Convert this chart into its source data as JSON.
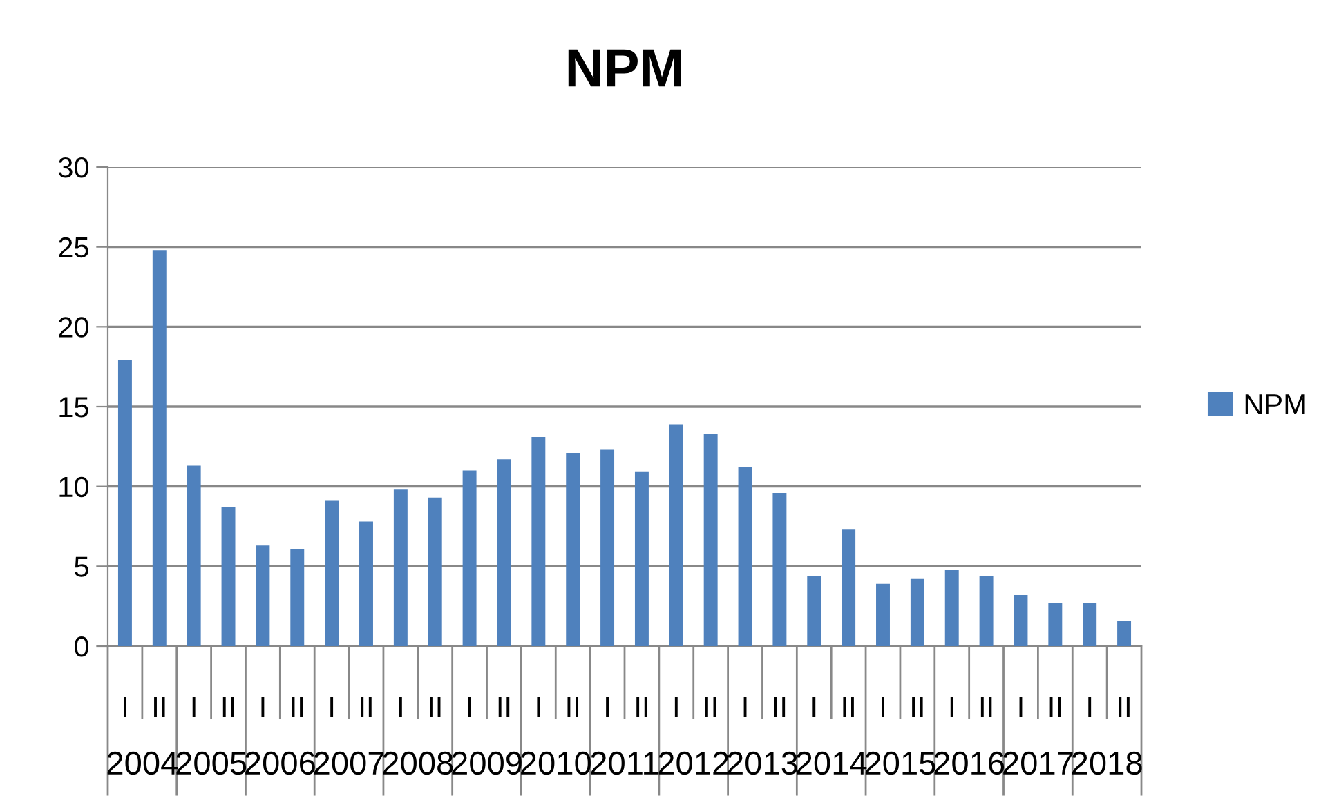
{
  "chart_data": {
    "type": "bar",
    "title": "NPM",
    "categories": [
      "I",
      "II",
      "I",
      "II",
      "I",
      "II",
      "I",
      "II",
      "I",
      "II",
      "I",
      "II",
      "I",
      "II",
      "I",
      "II",
      "I",
      "II",
      "I",
      "II",
      "I",
      "II",
      "I",
      "II",
      "I",
      "II",
      "I",
      "II",
      "I",
      "II"
    ],
    "annotations": [
      "2004",
      "2005",
      "2006",
      "2007",
      "2008",
      "2009",
      "2010",
      "2011",
      "2012",
      "2013",
      "2014",
      "2015",
      "2016",
      "2017",
      "2018"
    ],
    "series": [
      {
        "name": "NPM",
        "color": "#4f81bd",
        "values": [
          17.9,
          24.8,
          11.3,
          8.7,
          6.3,
          6.1,
          9.1,
          7.8,
          9.8,
          9.3,
          11.0,
          11.7,
          13.1,
          12.1,
          12.3,
          10.9,
          13.9,
          13.3,
          11.2,
          9.6,
          4.4,
          7.3,
          3.9,
          4.2,
          4.8,
          4.4,
          3.2,
          2.7,
          2.7,
          1.6
        ]
      }
    ],
    "ylim": [
      0,
      30
    ],
    "yticks": [
      0,
      5,
      10,
      15,
      20,
      25,
      30
    ],
    "grid": "y",
    "legend": "right"
  }
}
